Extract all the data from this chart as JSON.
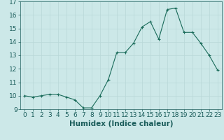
{
  "title": "",
  "xlabel": "Humidex (Indice chaleur)",
  "ylabel": "",
  "x": [
    0,
    1,
    2,
    3,
    4,
    5,
    6,
    7,
    8,
    9,
    10,
    11,
    12,
    13,
    14,
    15,
    16,
    17,
    18,
    19,
    20,
    21,
    22,
    23
  ],
  "y": [
    10.0,
    9.9,
    10.0,
    10.1,
    10.1,
    9.9,
    9.7,
    9.1,
    9.1,
    10.0,
    11.2,
    13.2,
    13.2,
    13.9,
    15.1,
    15.5,
    14.2,
    16.4,
    16.5,
    14.7,
    14.7,
    13.9,
    13.0,
    11.9
  ],
  "ylim": [
    9,
    17
  ],
  "xlim": [
    -0.5,
    23.5
  ],
  "yticks": [
    9,
    10,
    11,
    12,
    13,
    14,
    15,
    16,
    17
  ],
  "xticks": [
    0,
    1,
    2,
    3,
    4,
    5,
    6,
    7,
    8,
    9,
    10,
    11,
    12,
    13,
    14,
    15,
    16,
    17,
    18,
    19,
    20,
    21,
    22,
    23
  ],
  "line_color": "#1a6b5a",
  "marker_color": "#1a6b5a",
  "bg_color": "#cce8e8",
  "grid_color": "#b8d8d8",
  "text_color": "#1a5c5a",
  "tick_fontsize": 6.5,
  "label_fontsize": 7.5
}
